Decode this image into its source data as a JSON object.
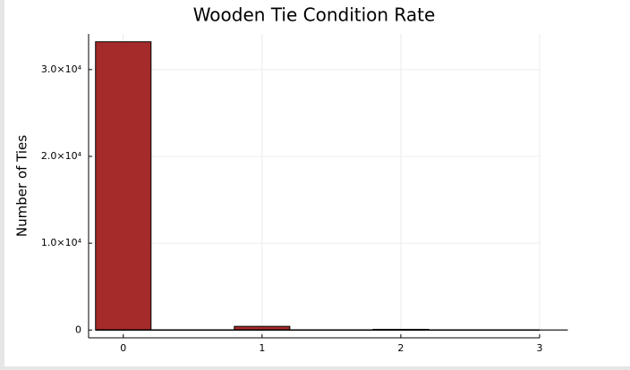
{
  "chart_data": {
    "type": "bar",
    "title": "Wooden Tie Condition Rate",
    "ylabel": "Number of Ties",
    "x": [
      0,
      1,
      2,
      3
    ],
    "values": [
      33200,
      420,
      80,
      10
    ],
    "color": "#a52a2a",
    "bar_width": 0.4,
    "xlim": [
      -0.25,
      3
    ],
    "xticks": [
      0,
      1,
      2,
      3
    ],
    "ylim": [
      -900,
      34100
    ],
    "yticks": [
      0,
      {
        "value": 10000,
        "label": "1.0×10⁴"
      },
      {
        "value": 20000,
        "label": "2.0×10⁴"
      },
      {
        "value": 30000,
        "label": "3.0×10⁴"
      }
    ],
    "grid": true
  }
}
